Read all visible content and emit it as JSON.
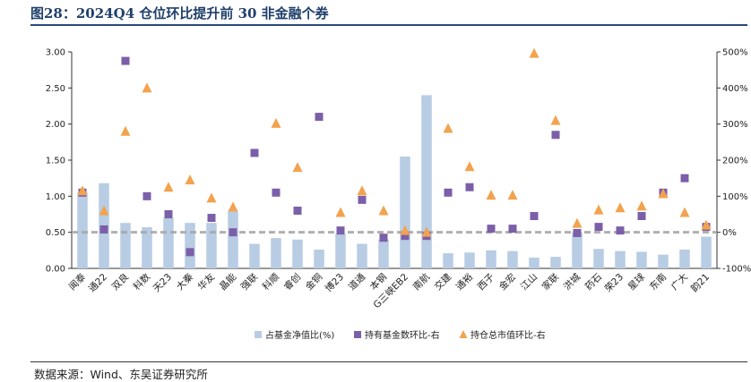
{
  "header": {
    "title": "图28：2024Q4 仓位环比提升前 30 非金融个券"
  },
  "footer": {
    "source": "数据来源：Wind、东吴证券研究所"
  },
  "colors": {
    "bar": "#b8cce4",
    "square": "#7b5fa8",
    "triangle": "#f3a24d",
    "refline": "#a8a8a8"
  },
  "chart_data": {
    "type": "bar",
    "categories": [
      "闻泰",
      "通22",
      "双良",
      "科数",
      "天23",
      "大秦",
      "华友",
      "晶能",
      "强联",
      "科顺",
      "睿创",
      "金铜",
      "博23",
      "道通",
      "本钢",
      "G三峡EB2",
      "南航",
      "交建",
      "通裕",
      "西子",
      "金宏",
      "江山",
      "家联",
      "洪城",
      "药石",
      "荣23",
      "星球",
      "东南",
      "广大",
      "韵21"
    ],
    "ylim_left": [
      0,
      3
    ],
    "yticks_left": [
      "0.00",
      "0.50",
      "1.00",
      "1.50",
      "2.00",
      "2.50",
      "3.00"
    ],
    "ylim_right": [
      -100,
      500
    ],
    "yticks_right": [
      "-100%",
      "0%",
      "100%",
      "200%",
      "300%",
      "400%",
      "500%"
    ],
    "reference_line_right": 0,
    "series": [
      {
        "name": "占基金净值比(%)",
        "kind": "bar",
        "axis": "left",
        "values": [
          1.05,
          1.18,
          0.63,
          0.57,
          0.7,
          0.63,
          0.63,
          0.8,
          0.34,
          0.42,
          0.4,
          0.26,
          0.48,
          0.34,
          0.4,
          1.55,
          2.4,
          0.21,
          0.22,
          0.25,
          0.24,
          0.15,
          0.16,
          0.5,
          0.27,
          0.24,
          0.23,
          0.19,
          0.26,
          0.44
        ]
      },
      {
        "name": "持有基金数环比-右",
        "kind": "square",
        "axis": "right",
        "values": [
          110,
          8,
          475,
          100,
          50,
          -55,
          40,
          0,
          220,
          110,
          60,
          320,
          5,
          90,
          -15,
          -10,
          -10,
          110,
          125,
          10,
          10,
          45,
          270,
          -2,
          15,
          5,
          45,
          110,
          150,
          15
        ]
      },
      {
        "name": "持仓总市值环比-右",
        "kind": "triangle",
        "axis": "right",
        "values": [
          115,
          60,
          280,
          400,
          125,
          145,
          95,
          70,
          null,
          302,
          180,
          null,
          55,
          115,
          60,
          5,
          0,
          288,
          182,
          103,
          103,
          496,
          310,
          25,
          62,
          68,
          73,
          107,
          55,
          20
        ]
      }
    ]
  }
}
